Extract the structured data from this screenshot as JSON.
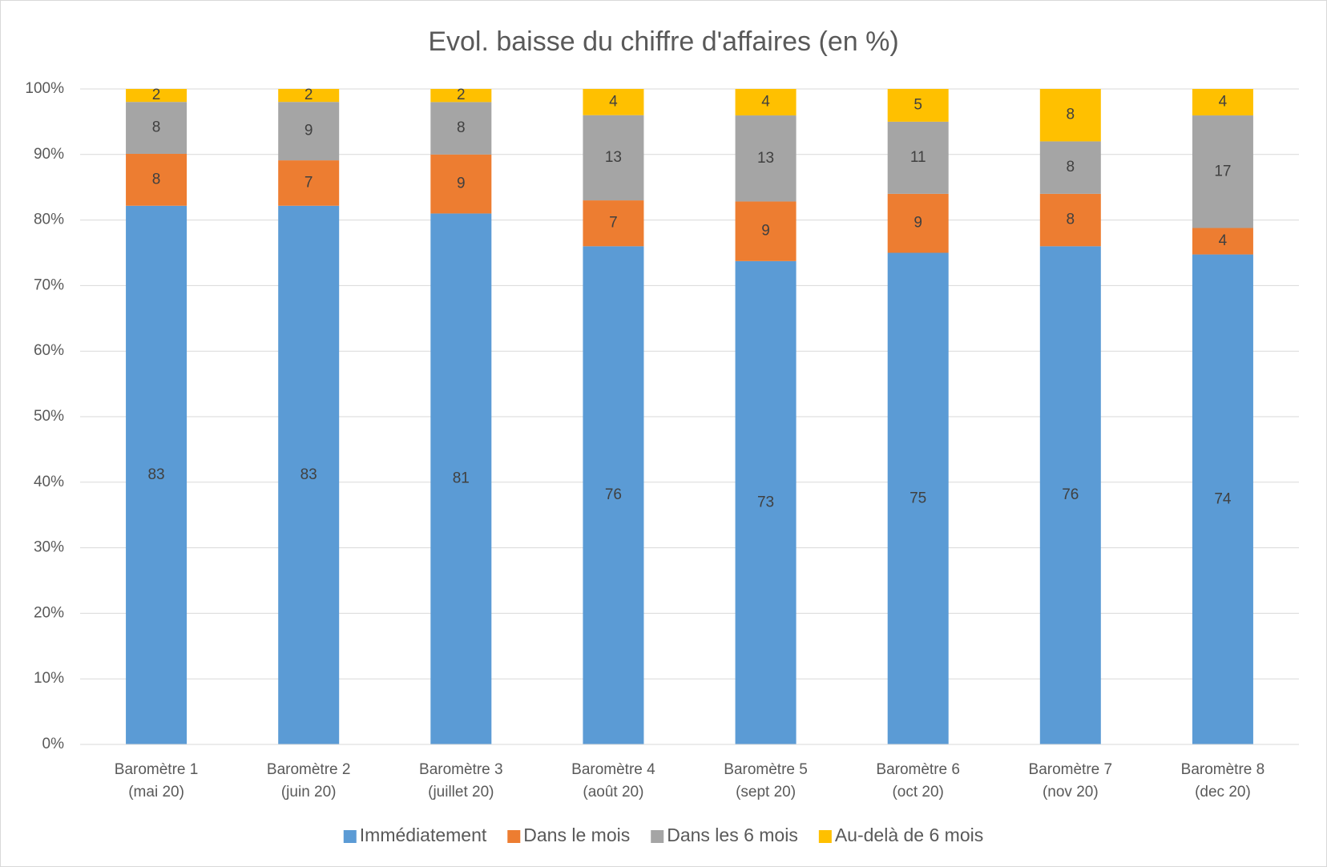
{
  "chart_data": {
    "type": "bar",
    "stacked": "percent",
    "title": "Evol. baisse du chiffre d'affaires (en %)",
    "categories": [
      [
        "Baromètre 1",
        "(mai 20)"
      ],
      [
        "Baromètre 2",
        "(juin 20)"
      ],
      [
        "Baromètre 3",
        "(juillet 20)"
      ],
      [
        "Baromètre 4",
        "(août 20)"
      ],
      [
        "Baromètre 5",
        "(sept 20)"
      ],
      [
        "Baromètre 6",
        "(oct 20)"
      ],
      [
        "Baromètre 7",
        "(nov 20)"
      ],
      [
        "Baromètre 8",
        "(dec 20)"
      ]
    ],
    "series": [
      {
        "name": "Immédiatement",
        "color": "#5b9bd5",
        "values": [
          83,
          83,
          81,
          76,
          73,
          75,
          76,
          74
        ]
      },
      {
        "name": "Dans le mois",
        "color": "#ed7d31",
        "values": [
          8,
          7,
          9,
          7,
          9,
          9,
          8,
          4
        ]
      },
      {
        "name": "Dans les 6 mois",
        "color": "#a5a5a5",
        "values": [
          8,
          9,
          8,
          13,
          13,
          11,
          8,
          17
        ]
      },
      {
        "name": "Au-delà de 6 mois",
        "color": "#ffc000",
        "values": [
          2,
          2,
          2,
          4,
          4,
          5,
          8,
          4
        ]
      }
    ],
    "ylim": [
      0,
      100
    ],
    "yticks": [
      {
        "value": 0,
        "label": "0%"
      },
      {
        "value": 10,
        "label": "10%"
      },
      {
        "value": 20,
        "label": "20%"
      },
      {
        "value": 30,
        "label": "30%"
      },
      {
        "value": 40,
        "label": "40%"
      },
      {
        "value": 50,
        "label": "50%"
      },
      {
        "value": 60,
        "label": "60%"
      },
      {
        "value": 70,
        "label": "70%"
      },
      {
        "value": 80,
        "label": "80%"
      },
      {
        "value": 90,
        "label": "90%"
      },
      {
        "value": 100,
        "label": "100%"
      }
    ],
    "grid": true,
    "legend": "bottom"
  }
}
